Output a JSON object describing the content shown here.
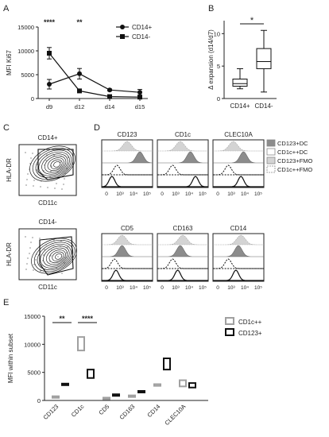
{
  "panel_letters": {
    "A": "A",
    "B": "B",
    "C": "C",
    "D": "D",
    "E": "E"
  },
  "chart_data": [
    {
      "id": "A",
      "type": "line",
      "ylabel": "MFI Ki67",
      "categories": [
        "d9",
        "d12",
        "d14",
        "d15"
      ],
      "ylim": [
        0,
        15000
      ],
      "yticks": [
        "0",
        "5000",
        "10000",
        "15000"
      ],
      "series": [
        {
          "name": "CD14+",
          "marker": "circle",
          "values": [
            3000,
            5200,
            1800,
            1300
          ],
          "err": [
            1000,
            1100,
            200,
            600
          ]
        },
        {
          "name": "CD14-",
          "marker": "square",
          "values": [
            9500,
            1600,
            400,
            300
          ],
          "err": [
            1200,
            300,
            100,
            100
          ]
        }
      ],
      "significance": [
        {
          "category": "d9",
          "label": "****"
        },
        {
          "category": "d12",
          "label": "**"
        }
      ],
      "legend_position": "top-right"
    },
    {
      "id": "B",
      "type": "box",
      "ylabel": "Δ expansion (d14/d7)",
      "categories": [
        "CD14+",
        "CD14-"
      ],
      "ylim": [
        0,
        12
      ],
      "yticks": [
        "0",
        "5",
        "10"
      ],
      "boxes": [
        {
          "min": 1.5,
          "q1": 1.9,
          "median": 2.3,
          "q3": 3.0,
          "max": 4.6
        },
        {
          "min": 1.0,
          "q1": 4.6,
          "median": 5.7,
          "q3": 7.7,
          "max": 10.5
        }
      ],
      "significance": "*"
    },
    {
      "id": "C",
      "type": "contour",
      "plots": [
        {
          "title": "CD14+",
          "xlabel": "CD11c",
          "ylabel": "HLA-DR"
        },
        {
          "title": "CD14-",
          "xlabel": "CD11c",
          "ylabel": "HLA-DR"
        }
      ]
    },
    {
      "id": "D",
      "type": "histogram",
      "markers_top": [
        "CD123",
        "CD1c",
        "CLEC10A"
      ],
      "markers_bottom": [
        "CD5",
        "CD163",
        "CD14"
      ],
      "xticks": [
        "0",
        "10³",
        "10⁴",
        "10⁵"
      ],
      "legend": [
        {
          "label": "CD123+DC",
          "color": "#8c8c8c",
          "style": "filled"
        },
        {
          "label": "CD1c++DC",
          "color": "#ffffff",
          "style": "outline"
        },
        {
          "label": "CD123+FMO",
          "color": "#d4d4d4",
          "style": "filled"
        },
        {
          "label": "CD1c++FMO",
          "color": "#ffffff",
          "style": "dashed"
        }
      ]
    },
    {
      "id": "E",
      "type": "box",
      "ylabel": "MFI within subset",
      "categories": [
        "CD123",
        "CD1c",
        "CD5",
        "CD163",
        "CD14",
        "CLEC10A"
      ],
      "ylim": [
        0,
        15000
      ],
      "yticks": [
        "0",
        "5000",
        "10000",
        "15000"
      ],
      "series": [
        {
          "name": "CD1c++",
          "color": "#a0a0a0",
          "ranges": [
            [
              600,
              750
            ],
            [
              8900,
              11300
            ],
            [
              350,
              500
            ],
            [
              700,
              900
            ],
            [
              2600,
              2900
            ],
            [
              2500,
              3600
            ]
          ]
        },
        {
          "name": "CD123+",
          "color": "#111111",
          "ranges": [
            [
              2800,
              3000
            ],
            [
              4000,
              5500
            ],
            [
              950,
              1100
            ],
            [
              1550,
              1700
            ],
            [
              5500,
              7500
            ],
            [
              2300,
              3100
            ]
          ]
        }
      ],
      "significance": [
        {
          "category": "CD123",
          "label": "**"
        },
        {
          "category": "CD1c",
          "label": "****"
        }
      ],
      "legend_position": "top-right"
    }
  ]
}
